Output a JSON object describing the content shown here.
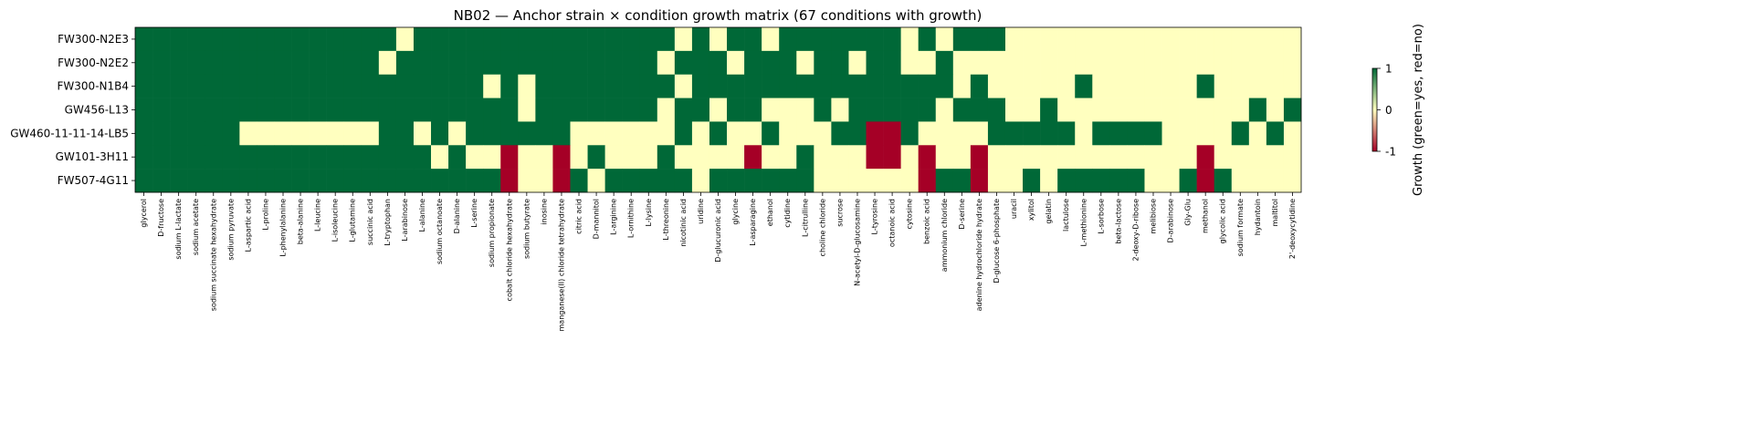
{
  "chart_data": {
    "type": "heatmap",
    "title": "NB02 — Anchor strain × condition growth matrix (67 conditions with growth)",
    "rows": [
      "FW300-N2E3",
      "FW300-N2E2",
      "FW300-N1B4",
      "GW456-L13",
      "GW460-11-11-14-LB5",
      "GW101-3H11",
      "FW507-4G11"
    ],
    "columns": [
      "glycerol",
      "D-fructose",
      "sodium L-lactate",
      "sodium acetate",
      "sodium succinate hexahydrate",
      "sodium pyruvate",
      "L-aspartic acid",
      "L-proline",
      "L-phenylalanine",
      "beta-alanine",
      "L-leucine",
      "L-isoleucine",
      "L-glutamine",
      "succinic acid",
      "L-tryptophan",
      "L-arabinose",
      "L-alanine",
      "sodium octanoate",
      "D-alanine",
      "L-serine",
      "sodium propionate",
      "cobalt chloride hexahydrate",
      "sodium butyrate",
      "inosine",
      "manganese(II) chloride tetrahydrate",
      "citric acid",
      "D-mannitol",
      "L-arginine",
      "L-ornithine",
      "L-lysine",
      "L-threonine",
      "nicotinic acid",
      "uridine",
      "D-glucuronic acid",
      "glycine",
      "L-asparagine",
      "ethanol",
      "cytidine",
      "L-citrulline",
      "choline chloride",
      "sucrose",
      "N-acetyl-D-glucosamine",
      "L-tyrosine",
      "octanoic acid",
      "cytosine",
      "benzoic acid",
      "ammonium chloride",
      "D-serine",
      "adenine hydrochloride hydrate",
      "D-glucose 6-phosphate",
      "uracil",
      "xylitol",
      "gelatin",
      "lactulose",
      "L-methionine",
      "L-sorbose",
      "beta-lactose",
      "2-deoxy-D-ribose",
      "melibiose",
      "D-arabinose",
      "Gly-Glu",
      "methanol",
      "glycolic acid",
      "sodium formate",
      "hydantoin",
      "maltitol",
      "2'-deoxycytidine"
    ],
    "values": [
      [
        1,
        1,
        1,
        1,
        1,
        1,
        1,
        1,
        1,
        1,
        1,
        1,
        1,
        1,
        1,
        0,
        1,
        1,
        1,
        1,
        1,
        1,
        1,
        1,
        1,
        1,
        1,
        1,
        1,
        1,
        1,
        0,
        1,
        0,
        1,
        1,
        0,
        1,
        1,
        1,
        1,
        1,
        1,
        1,
        0,
        1,
        0,
        1,
        1,
        1,
        0,
        0,
        0,
        0,
        0,
        0,
        0,
        0,
        0,
        0,
        0,
        0,
        0,
        0,
        0,
        0,
        0
      ],
      [
        1,
        1,
        1,
        1,
        1,
        1,
        1,
        1,
        1,
        1,
        1,
        1,
        1,
        1,
        0,
        1,
        1,
        1,
        1,
        1,
        1,
        1,
        1,
        1,
        1,
        1,
        1,
        1,
        1,
        1,
        0,
        1,
        1,
        1,
        0,
        1,
        1,
        1,
        0,
        1,
        1,
        0,
        1,
        1,
        0,
        0,
        1,
        0,
        0,
        0,
        0,
        0,
        0,
        0,
        0,
        0,
        0,
        0,
        0,
        0,
        0,
        0,
        0,
        0,
        0,
        0,
        0
      ],
      [
        1,
        1,
        1,
        1,
        1,
        1,
        1,
        1,
        1,
        1,
        1,
        1,
        1,
        1,
        1,
        1,
        1,
        1,
        1,
        1,
        0,
        1,
        0,
        1,
        1,
        1,
        1,
        1,
        1,
        1,
        1,
        0,
        1,
        1,
        1,
        1,
        1,
        1,
        1,
        1,
        1,
        1,
        1,
        1,
        1,
        1,
        1,
        0,
        1,
        0,
        0,
        0,
        0,
        0,
        1,
        0,
        0,
        0,
        0,
        0,
        0,
        1,
        0,
        0,
        0,
        0,
        0
      ],
      [
        1,
        1,
        1,
        1,
        1,
        1,
        1,
        1,
        1,
        1,
        1,
        1,
        1,
        1,
        1,
        1,
        1,
        1,
        1,
        1,
        1,
        1,
        0,
        1,
        1,
        1,
        1,
        1,
        1,
        1,
        0,
        1,
        1,
        0,
        1,
        1,
        0,
        0,
        0,
        1,
        0,
        1,
        1,
        1,
        1,
        1,
        0,
        1,
        1,
        1,
        0,
        0,
        1,
        0,
        0,
        0,
        0,
        0,
        0,
        0,
        0,
        0,
        0,
        0,
        1,
        0,
        1
      ],
      [
        1,
        1,
        1,
        1,
        1,
        1,
        0,
        0,
        0,
        0,
        0,
        0,
        0,
        0,
        1,
        1,
        0,
        1,
        0,
        1,
        1,
        1,
        1,
        1,
        1,
        0,
        0,
        0,
        0,
        0,
        0,
        1,
        0,
        1,
        0,
        0,
        1,
        0,
        0,
        0,
        1,
        1,
        -1,
        -1,
        1,
        0,
        0,
        0,
        0,
        1,
        1,
        1,
        1,
        1,
        0,
        1,
        1,
        1,
        1,
        0,
        0,
        0,
        0,
        1,
        0,
        1,
        0
      ],
      [
        1,
        1,
        1,
        1,
        1,
        1,
        1,
        1,
        1,
        1,
        1,
        1,
        1,
        1,
        1,
        1,
        1,
        0,
        1,
        0,
        0,
        -1,
        0,
        0,
        -1,
        0,
        1,
        0,
        0,
        0,
        1,
        0,
        0,
        0,
        0,
        -1,
        0,
        0,
        1,
        0,
        0,
        0,
        -1,
        -1,
        0,
        -1,
        0,
        0,
        -1,
        0,
        0,
        0,
        0,
        0,
        0,
        0,
        0,
        0,
        0,
        0,
        0,
        -1,
        0,
        0,
        0,
        0,
        0
      ],
      [
        1,
        1,
        1,
        1,
        1,
        1,
        1,
        1,
        1,
        1,
        1,
        1,
        1,
        1,
        1,
        1,
        1,
        1,
        1,
        1,
        1,
        -1,
        0,
        0,
        -1,
        1,
        0,
        1,
        1,
        1,
        1,
        1,
        0,
        1,
        1,
        1,
        1,
        1,
        1,
        0,
        0,
        0,
        0,
        0,
        0,
        -1,
        1,
        1,
        -1,
        0,
        0,
        1,
        0,
        1,
        1,
        1,
        1,
        1,
        0,
        0,
        1,
        -1,
        1,
        0,
        0,
        0,
        0
      ]
    ],
    "colormap": [
      "#a50026",
      "#ffffbf",
      "#006837"
    ],
    "clim": [
      -1,
      1
    ],
    "colorbar_ticks": [
      -1,
      0,
      1
    ],
    "colorbar_label": "Growth (green=yes, red=no)"
  }
}
